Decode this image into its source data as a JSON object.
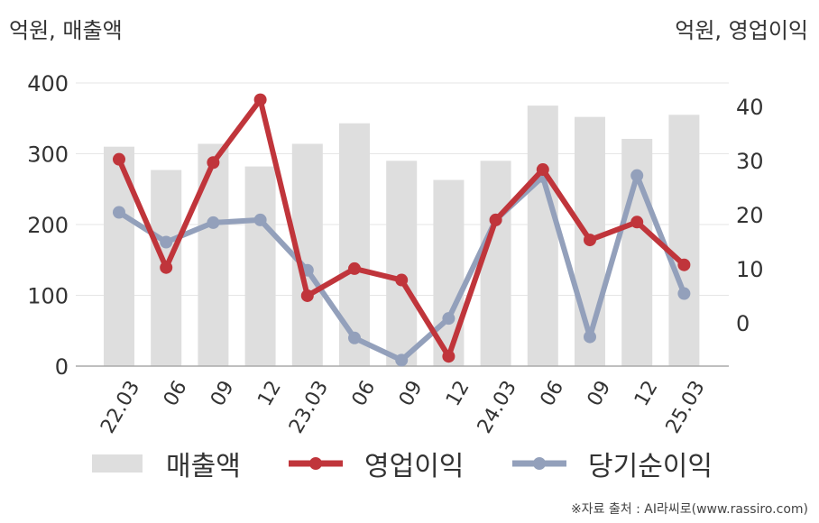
{
  "units": {
    "left": "억원, 매출액",
    "right": "억원, 영업이익"
  },
  "source": "※자료 출처 : AI라씨로(www.rassiro.com)",
  "colors": {
    "revenue": "#dedede",
    "operating": "#c0353b",
    "net": "#93a0bb"
  },
  "chart_data": {
    "type": "bar",
    "categories": [
      "22.03",
      "06",
      "09",
      "12",
      "23.03",
      "06",
      "09",
      "12",
      "24.03",
      "06",
      "09",
      "12",
      "25.03"
    ],
    "left_axis": {
      "ticks": [
        "0",
        "100",
        "200",
        "300",
        "400"
      ],
      "ylim": [
        0,
        400
      ]
    },
    "right_axis": {
      "ticks": [
        "0",
        "10",
        "20",
        "30",
        "40"
      ],
      "ylim": [
        -8,
        44.3
      ]
    },
    "grid": true,
    "legend_position": "bottom",
    "series": [
      {
        "name": "매출액",
        "type": "bar",
        "axis": "left",
        "values": [
          310,
          277,
          314,
          282,
          314,
          343,
          290,
          263,
          290,
          368,
          352,
          321,
          355
        ]
      },
      {
        "name": "영업이익",
        "type": "line",
        "axis": "right",
        "values": [
          30.2,
          10.2,
          29.6,
          41.2,
          5.0,
          10.0,
          7.9,
          -6.2,
          19.0,
          28.3,
          15.3,
          18.6,
          10.7
        ]
      },
      {
        "name": "당기순이익",
        "type": "line",
        "axis": "right",
        "values": [
          20.4,
          14.9,
          18.5,
          19.0,
          9.7,
          -2.8,
          -6.9,
          0.8,
          19.0,
          27.0,
          -2.6,
          27.2,
          5.4
        ]
      }
    ]
  }
}
